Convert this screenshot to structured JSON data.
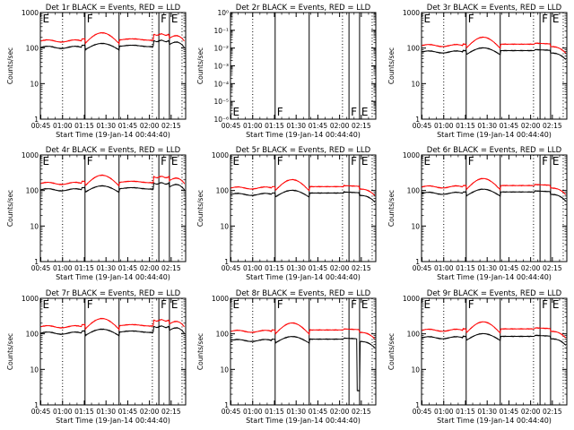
{
  "figure": {
    "ylabel": "Counts/sec",
    "xlabel": "Start Time (19-Jan-14 00:44:40)"
  },
  "colors": {
    "events": "#000000",
    "lld": "#ff0000",
    "axis": "#000000"
  },
  "chart_data": [
    {
      "type": "line",
      "title": "Det 1r BLACK = Events, RED = LLD",
      "ylim_log10": [
        0,
        3
      ],
      "yticks": [
        "1",
        "10",
        "100",
        "1000"
      ],
      "xticks": [
        "00:45",
        "01:00",
        "01:15",
        "01:30",
        "01:45",
        "02:00",
        "02:15"
      ],
      "xlabel": "Start Time (19-Jan-14 00:44:40)",
      "ylabel": "Counts/sec",
      "markers": [
        "E",
        "F",
        "F",
        "E"
      ],
      "grid": false,
      "series": [
        {
          "name": "Events",
          "color": "#000000",
          "profile": "A",
          "level": 1.0
        },
        {
          "name": "LLD",
          "color": "#ff0000",
          "profile": "A",
          "level": 1.0
        }
      ]
    },
    {
      "type": "line",
      "title": "Det 2r BLACK = Events, RED = LLD",
      "ylim_log10": [
        -6,
        0
      ],
      "yticks": [
        "10⁻⁶",
        "10⁻⁵",
        "10⁻⁴",
        "10⁻³",
        "10⁻²",
        "10⁻¹",
        "10⁰"
      ],
      "xticks": [
        "00:45",
        "01:00",
        "01:15",
        "01:30",
        "01:45",
        "02:00",
        "02:15"
      ],
      "xlabel": "Start Time (19-Jan-14 00:44:40)",
      "ylabel": "Counts/sec",
      "markers": [
        "E",
        "F",
        "F",
        "E"
      ],
      "grid": false,
      "series": []
    },
    {
      "type": "line",
      "title": "Det 3r BLACK = Events, RED = LLD",
      "ylim_log10": [
        0,
        3
      ],
      "yticks": [
        "1",
        "10",
        "100",
        "1000"
      ],
      "xticks": [
        "00:45",
        "01:00",
        "01:15",
        "01:30",
        "01:45",
        "02:00",
        "02:15"
      ],
      "xlabel": "Start Time (19-Jan-14 00:44:40)",
      "ylabel": "Counts/sec",
      "markers": [
        "E",
        "F",
        "F",
        "E"
      ],
      "grid": false,
      "series": [
        {
          "name": "Events",
          "color": "#000000",
          "profile": "B",
          "level": 0.85
        },
        {
          "name": "LLD",
          "color": "#ff0000",
          "profile": "B",
          "level": 0.85
        }
      ]
    },
    {
      "type": "line",
      "title": "Det 4r BLACK = Events, RED = LLD",
      "ylim_log10": [
        0,
        3
      ],
      "yticks": [
        "1",
        "10",
        "100",
        "1000"
      ],
      "xticks": [
        "00:45",
        "01:00",
        "01:15",
        "01:30",
        "01:45",
        "02:00",
        "02:15"
      ],
      "xlabel": "Start Time (19-Jan-14 00:44:40)",
      "ylabel": "Counts/sec",
      "markers": [
        "E",
        "F",
        "F",
        "E"
      ],
      "grid": false,
      "series": [
        {
          "name": "Events",
          "color": "#000000",
          "profile": "A",
          "level": 1.0
        },
        {
          "name": "LLD",
          "color": "#ff0000",
          "profile": "A",
          "level": 1.0
        }
      ]
    },
    {
      "type": "line",
      "title": "Det 5r BLACK = Events, RED = LLD",
      "ylim_log10": [
        0,
        3
      ],
      "yticks": [
        "1",
        "10",
        "100",
        "1000"
      ],
      "xticks": [
        "00:45",
        "01:00",
        "01:15",
        "01:30",
        "01:45",
        "02:00",
        "02:15"
      ],
      "xlabel": "Start Time (19-Jan-14 00:44:40)",
      "ylabel": "Counts/sec",
      "markers": [
        "E",
        "F",
        "F",
        "E"
      ],
      "grid": false,
      "series": [
        {
          "name": "Events",
          "color": "#000000",
          "profile": "B",
          "level": 0.85
        },
        {
          "name": "LLD",
          "color": "#ff0000",
          "profile": "B",
          "level": 0.85
        }
      ]
    },
    {
      "type": "line",
      "title": "Det 6r BLACK = Events, RED = LLD",
      "ylim_log10": [
        0,
        3
      ],
      "yticks": [
        "1",
        "10",
        "100",
        "1000"
      ],
      "xticks": [
        "00:45",
        "01:00",
        "01:15",
        "01:30",
        "01:45",
        "02:00",
        "02:15"
      ],
      "xlabel": "Start Time (19-Jan-14 00:44:40)",
      "ylabel": "Counts/sec",
      "markers": [
        "E",
        "F",
        "F",
        "E"
      ],
      "grid": false,
      "series": [
        {
          "name": "Events",
          "color": "#000000",
          "profile": "B",
          "level": 0.9
        },
        {
          "name": "LLD",
          "color": "#ff0000",
          "profile": "B",
          "level": 0.9
        }
      ]
    },
    {
      "type": "line",
      "title": "Det 7r BLACK = Events, RED = LLD",
      "ylim_log10": [
        0,
        3
      ],
      "yticks": [
        "1",
        "10",
        "100",
        "1000"
      ],
      "xticks": [
        "00:45",
        "01:00",
        "01:15",
        "01:30",
        "01:45",
        "02:00",
        "02:15"
      ],
      "xlabel": "Start Time (19-Jan-14 00:44:40)",
      "ylabel": "Counts/sec",
      "markers": [
        "E",
        "F",
        "F",
        "E"
      ],
      "grid": false,
      "series": [
        {
          "name": "Events",
          "color": "#000000",
          "profile": "A",
          "level": 1.0
        },
        {
          "name": "LLD",
          "color": "#ff0000",
          "profile": "A",
          "level": 1.0
        }
      ]
    },
    {
      "type": "line",
      "title": "Det 8r BLACK = Events, RED = LLD",
      "ylim_log10": [
        0,
        3
      ],
      "yticks": [
        "1",
        "10",
        "100",
        "1000"
      ],
      "xticks": [
        "00:45",
        "01:00",
        "01:15",
        "01:30",
        "01:45",
        "02:00",
        "02:15"
      ],
      "xlabel": "Start Time (19-Jan-14 00:44:40)",
      "ylabel": "Counts/sec",
      "markers": [
        "E",
        "F",
        "F",
        "E"
      ],
      "grid": false,
      "series": [
        {
          "name": "Events",
          "color": "#000000",
          "profile": "B",
          "level": 0.72,
          "dip": true
        },
        {
          "name": "LLD",
          "color": "#ff0000",
          "profile": "B",
          "level": 0.85
        }
      ]
    },
    {
      "type": "line",
      "title": "Det 9r BLACK = Events, RED = LLD",
      "ylim_log10": [
        0,
        3
      ],
      "yticks": [
        "1",
        "10",
        "100",
        "1000"
      ],
      "xticks": [
        "00:45",
        "01:00",
        "01:15",
        "01:30",
        "01:45",
        "02:00",
        "02:15"
      ],
      "xlabel": "Start Time (19-Jan-14 00:44:40)",
      "ylabel": "Counts/sec",
      "markers": [
        "E",
        "F",
        "F",
        "E"
      ],
      "grid": false,
      "series": [
        {
          "name": "Events",
          "color": "#000000",
          "profile": "B",
          "level": 0.85
        },
        {
          "name": "LLD",
          "color": "#ff0000",
          "profile": "B",
          "level": 0.9
        }
      ]
    }
  ]
}
